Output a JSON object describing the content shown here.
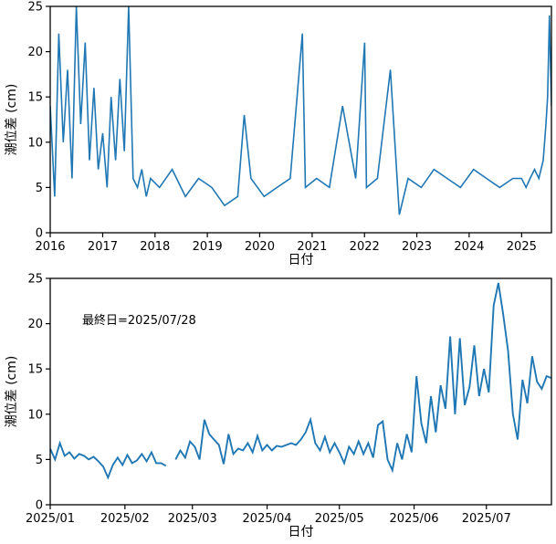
{
  "chart_data": [
    {
      "type": "line",
      "title": "",
      "xlabel": "日付",
      "ylabel": "潮位差 (cm)",
      "ylim": [
        0,
        25
      ],
      "xlim": [
        "2016-01-01",
        "2025-07-28"
      ],
      "grid": false,
      "line_color": "#1f77b4",
      "yticks": [
        0,
        5,
        10,
        15,
        20,
        25
      ],
      "xticks": [
        {
          "date": "2016-01-01",
          "label": "2016"
        },
        {
          "date": "2017-01-01",
          "label": "2017"
        },
        {
          "date": "2018-01-01",
          "label": "2018"
        },
        {
          "date": "2019-01-01",
          "label": "2019"
        },
        {
          "date": "2020-01-01",
          "label": "2020"
        },
        {
          "date": "2021-01-01",
          "label": "2021"
        },
        {
          "date": "2022-01-01",
          "label": "2022"
        },
        {
          "date": "2023-01-01",
          "label": "2023"
        },
        {
          "date": "2024-01-01",
          "label": "2024"
        },
        {
          "date": "2025-01-01",
          "label": "2025"
        }
      ],
      "series": [
        {
          "x": [
            "2016-01-01",
            "2016-02-01",
            "2016-03-01",
            "2016-04-01",
            "2016-05-01",
            "2016-06-01",
            "2016-07-01",
            "2016-08-01",
            "2016-09-01",
            "2016-10-01",
            "2016-11-01",
            "2016-12-01",
            "2017-01-01",
            "2017-02-01",
            "2017-03-01",
            "2017-04-01",
            "2017-05-01",
            "2017-06-01",
            "2017-07-01",
            "2017-08-01",
            "2017-09-01",
            "2017-10-01",
            "2017-11-01",
            "2017-12-01",
            "2018-02-01",
            "2018-05-01",
            "2018-08-01",
            "2018-11-01",
            "2019-02-01",
            "2019-05-01",
            "2019-08-01",
            "2019-09-15",
            "2019-11-01",
            "2020-02-01",
            "2020-05-01",
            "2020-08-01",
            "2020-10-25",
            "2020-11-15",
            "2021-02-01",
            "2021-05-01",
            "2021-08-01",
            "2021-11-01",
            "2022-01-02",
            "2022-01-15",
            "2022-04-01",
            "2022-07-01",
            "2022-09-01",
            "2022-11-01",
            "2023-02-01",
            "2023-05-01",
            "2023-08-01",
            "2023-11-01",
            "2024-02-01",
            "2024-05-01",
            "2024-08-01",
            "2024-11-01",
            "2025-01-01",
            "2025-02-01",
            "2025-03-01",
            "2025-04-01",
            "2025-05-01",
            "2025-06-01",
            "2025-06-20",
            "2025-07-01",
            "2025-07-14",
            "2025-07-28"
          ],
          "y": [
            14,
            4,
            22,
            10,
            18,
            6,
            25,
            12,
            21,
            8,
            16,
            7,
            11,
            5,
            15,
            8,
            17,
            9,
            25,
            6,
            5,
            7,
            4,
            6,
            5,
            7,
            4,
            6,
            5,
            3,
            4,
            13,
            6,
            4,
            5,
            6,
            22,
            5,
            6,
            5,
            14,
            6,
            21,
            5,
            6,
            18,
            2,
            6,
            5,
            7,
            6,
            5,
            7,
            6,
            5,
            6,
            6,
            5,
            6,
            7,
            6,
            8,
            12,
            15,
            24,
            14
          ]
        }
      ]
    },
    {
      "type": "line",
      "title": "",
      "xlabel": "日付",
      "ylabel": "潮位差 (cm)",
      "ylim": [
        0,
        25
      ],
      "xlim": [
        "2025-01-01",
        "2025-07-28"
      ],
      "grid": false,
      "line_color": "#1f77b4",
      "annotation": "最終日=2025/07/28",
      "yticks": [
        0,
        5,
        10,
        15,
        20,
        25
      ],
      "xticks": [
        {
          "date": "2025-01-01",
          "label": "2025/01"
        },
        {
          "date": "2025-02-01",
          "label": "2025/02"
        },
        {
          "date": "2025-03-01",
          "label": "2025/03"
        },
        {
          "date": "2025-04-01",
          "label": "2025/04"
        },
        {
          "date": "2025-05-01",
          "label": "2025/05"
        },
        {
          "date": "2025-06-01",
          "label": "2025/06"
        },
        {
          "date": "2025-07-01",
          "label": "2025/07"
        }
      ],
      "series": [
        {
          "segments": [
            {
              "x": [
                "2025-01-01",
                "2025-01-03",
                "2025-01-05",
                "2025-01-07",
                "2025-01-09",
                "2025-01-11",
                "2025-01-13",
                "2025-01-15",
                "2025-01-17",
                "2025-01-19",
                "2025-01-21",
                "2025-01-23",
                "2025-01-25",
                "2025-01-27",
                "2025-01-29",
                "2025-01-31",
                "2025-02-02",
                "2025-02-04",
                "2025-02-06",
                "2025-02-08",
                "2025-02-10",
                "2025-02-12",
                "2025-02-14",
                "2025-02-16",
                "2025-02-18"
              ],
              "y": [
                6.2,
                5.0,
                6.8,
                5.4,
                5.8,
                5.1,
                5.6,
                5.4,
                5.0,
                5.3,
                4.8,
                4.2,
                3.0,
                4.4,
                5.2,
                4.4,
                5.5,
                4.6,
                4.9,
                5.6,
                4.8,
                5.8,
                4.6,
                4.6,
                4.3
              ]
            },
            {
              "x": [
                "2025-02-22",
                "2025-02-24",
                "2025-02-26",
                "2025-02-28",
                "2025-03-02",
                "2025-03-04",
                "2025-03-06",
                "2025-03-08",
                "2025-03-10",
                "2025-03-12",
                "2025-03-14",
                "2025-03-16",
                "2025-03-18",
                "2025-03-20",
                "2025-03-22",
                "2025-03-24",
                "2025-03-26",
                "2025-03-28",
                "2025-03-30",
                "2025-04-01",
                "2025-04-03",
                "2025-04-05",
                "2025-04-07",
                "2025-04-09",
                "2025-04-11",
                "2025-04-13",
                "2025-04-15",
                "2025-04-17",
                "2025-04-19",
                "2025-04-21",
                "2025-04-23",
                "2025-04-25",
                "2025-04-27",
                "2025-04-29",
                "2025-05-01",
                "2025-05-03",
                "2025-05-05",
                "2025-05-07",
                "2025-05-09",
                "2025-05-11",
                "2025-05-13",
                "2025-05-15",
                "2025-05-17",
                "2025-05-19",
                "2025-05-21",
                "2025-05-23",
                "2025-05-25",
                "2025-05-27",
                "2025-05-29",
                "2025-05-31",
                "2025-06-02",
                "2025-06-04",
                "2025-06-06",
                "2025-06-08",
                "2025-06-10",
                "2025-06-12",
                "2025-06-14",
                "2025-06-16",
                "2025-06-18",
                "2025-06-20",
                "2025-06-22",
                "2025-06-24",
                "2025-06-26",
                "2025-06-28",
                "2025-06-30",
                "2025-07-02",
                "2025-07-04",
                "2025-07-06",
                "2025-07-08",
                "2025-07-10",
                "2025-07-12",
                "2025-07-14",
                "2025-07-16",
                "2025-07-18",
                "2025-07-20",
                "2025-07-22",
                "2025-07-24",
                "2025-07-26",
                "2025-07-28"
              ],
              "y": [
                5.0,
                6.0,
                5.2,
                7.0,
                6.4,
                5.0,
                9.4,
                7.8,
                7.2,
                6.6,
                4.5,
                7.8,
                5.6,
                6.2,
                6.0,
                6.8,
                5.8,
                7.6,
                6.0,
                6.6,
                6.0,
                6.5,
                6.4,
                6.6,
                6.8,
                6.6,
                7.2,
                8.0,
                9.4,
                6.8,
                6.0,
                7.5,
                5.8,
                6.8,
                5.8,
                4.6,
                6.4,
                5.6,
                7.0,
                5.6,
                6.8,
                5.2,
                8.8,
                9.2,
                5.0,
                3.8,
                6.8,
                5.0,
                7.8,
                5.8,
                14.2,
                9.0,
                6.8,
                12.0,
                8.0,
                13.2,
                10.6,
                18.6,
                10.0,
                18.4,
                11.0,
                13.0,
                17.6,
                12.0,
                15.0,
                12.4,
                22.0,
                24.5,
                21.0,
                17.0,
                10.0,
                7.2,
                13.8,
                11.2,
                16.4,
                13.6,
                12.8,
                14.2,
                14.0
              ]
            }
          ]
        }
      ]
    }
  ]
}
